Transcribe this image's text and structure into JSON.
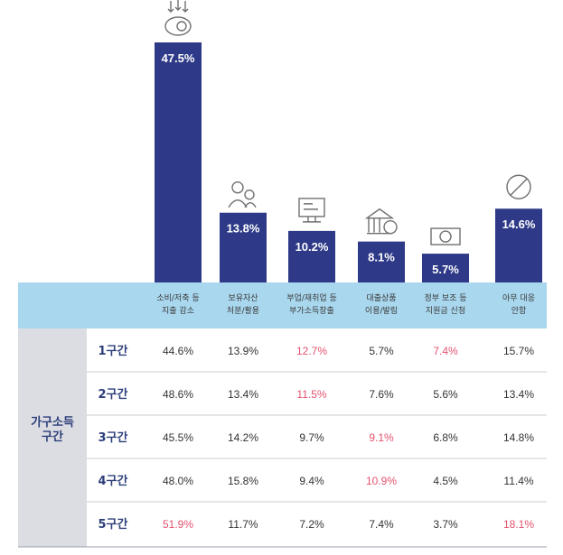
{
  "chart_data": {
    "type": "bar",
    "categories": [
      [
        "소비/저축 등",
        "지출 감소"
      ],
      [
        "보유자산",
        "처분/활용"
      ],
      [
        "부업/재취업 등",
        "부가소득창출"
      ],
      [
        "대출상품",
        "이용/발림"
      ],
      [
        "정부 보조 등",
        "지원금 신청"
      ],
      [
        "아무 대응",
        "안함"
      ]
    ],
    "values": [
      47.5,
      13.8,
      10.2,
      8.1,
      5.7,
      14.6
    ],
    "value_labels": [
      "47.5%",
      "13.8%",
      "10.2%",
      "8.1%",
      "5.7%",
      "14.6%"
    ],
    "icons": [
      "piggy-bank-icon",
      "assets-icon",
      "computer-work-icon",
      "bank-loan-icon",
      "money-support-icon",
      "no-action-icon"
    ],
    "ylim": [
      0,
      50
    ]
  },
  "table": {
    "group_label": [
      "가구소득",
      "구간"
    ],
    "rows": [
      {
        "label": "1구간",
        "cells": [
          "44.6%",
          "13.9%",
          "12.7%",
          "5.7%",
          "7.4%",
          "15.7%"
        ],
        "highlight": [
          false,
          false,
          true,
          false,
          true,
          false
        ]
      },
      {
        "label": "2구간",
        "cells": [
          "48.6%",
          "13.4%",
          "11.5%",
          "7.6%",
          "5.6%",
          "13.4%"
        ],
        "highlight": [
          false,
          false,
          true,
          false,
          false,
          false
        ]
      },
      {
        "label": "3구간",
        "cells": [
          "45.5%",
          "14.2%",
          "9.7%",
          "9.1%",
          "6.8%",
          "14.8%"
        ],
        "highlight": [
          false,
          false,
          false,
          true,
          false,
          false
        ]
      },
      {
        "label": "4구간",
        "cells": [
          "48.0%",
          "15.8%",
          "9.4%",
          "10.9%",
          "4.5%",
          "11.4%"
        ],
        "highlight": [
          false,
          false,
          false,
          true,
          false,
          false
        ]
      },
      {
        "label": "5구간",
        "cells": [
          "51.9%",
          "11.7%",
          "7.2%",
          "7.4%",
          "3.7%",
          "18.1%"
        ],
        "highlight": [
          true,
          false,
          false,
          false,
          false,
          true
        ]
      }
    ]
  },
  "colors": {
    "bar": "#2e3a87",
    "header_band": "#a9d7ee",
    "group_band": "#dcdde3",
    "highlight": "#e3526e",
    "text": "#333333",
    "row_label": "#2c3e7a"
  }
}
